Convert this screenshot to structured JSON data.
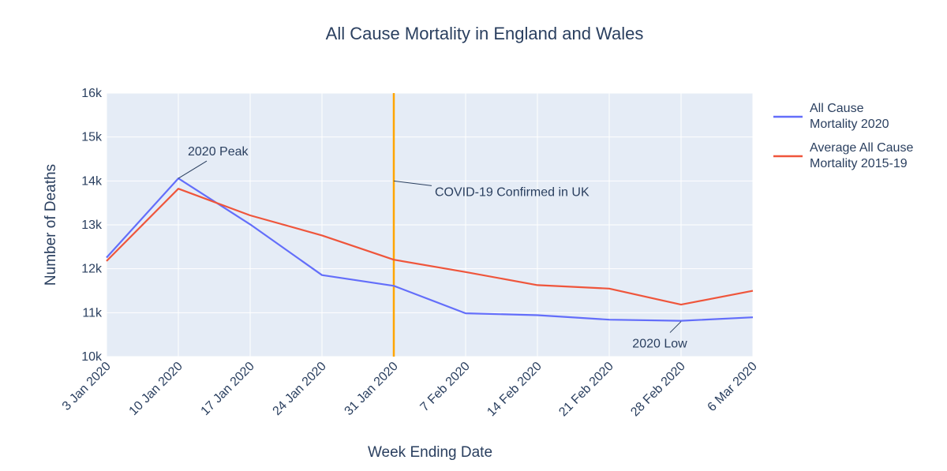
{
  "chart_data": {
    "type": "line",
    "title": "All Cause Mortality in England and Wales",
    "xlabel": "Week Ending Date",
    "ylabel": "Number of Deaths",
    "ylim": [
      10000,
      16000
    ],
    "yticks": [
      10000,
      11000,
      12000,
      13000,
      14000,
      15000,
      16000
    ],
    "ytick_labels": [
      "10k",
      "11k",
      "12k",
      "13k",
      "14k",
      "15k",
      "16k"
    ],
    "categories": [
      "3 Jan 2020",
      "10 Jan 2020",
      "17 Jan 2020",
      "24 Jan 2020",
      "31 Jan 2020",
      "7 Feb 2020",
      "14 Feb 2020",
      "21 Feb 2020",
      "28 Feb 2020",
      "6 Mar 2020"
    ],
    "grid": true,
    "legend_position": "right",
    "series": [
      {
        "name": "All Cause Mortality 2020",
        "name_lines": [
          "All Cause",
          "Mortality 2020"
        ],
        "color": "#636efa",
        "values": [
          12254,
          14058,
          13011,
          11856,
          11612,
          10986,
          10944,
          10841,
          10816,
          10895
        ]
      },
      {
        "name": "Average All Cause Mortality 2015-19",
        "name_lines": [
          "Average All Cause",
          "Mortality 2015-19"
        ],
        "color": "#ef553b",
        "values": [
          12175,
          13822,
          13216,
          12760,
          12206,
          11925,
          11627,
          11548,
          11183,
          11498
        ]
      }
    ],
    "vertical_line": {
      "x": "31 Jan 2020",
      "color": "#ffa500"
    },
    "annotations": [
      {
        "text": "2020 Peak",
        "x": "10 Jan 2020",
        "y": 14058
      },
      {
        "text": "COVID-19 Confirmed in UK",
        "x": "31 Jan 2020",
        "y": 14000
      },
      {
        "text": "2020 Low",
        "x": "28 Feb 2020",
        "y": 10816
      }
    ],
    "colors": {
      "plot_background": "#e5ecf6",
      "grid": "#ffffff",
      "text": "#2a3f5f"
    }
  }
}
